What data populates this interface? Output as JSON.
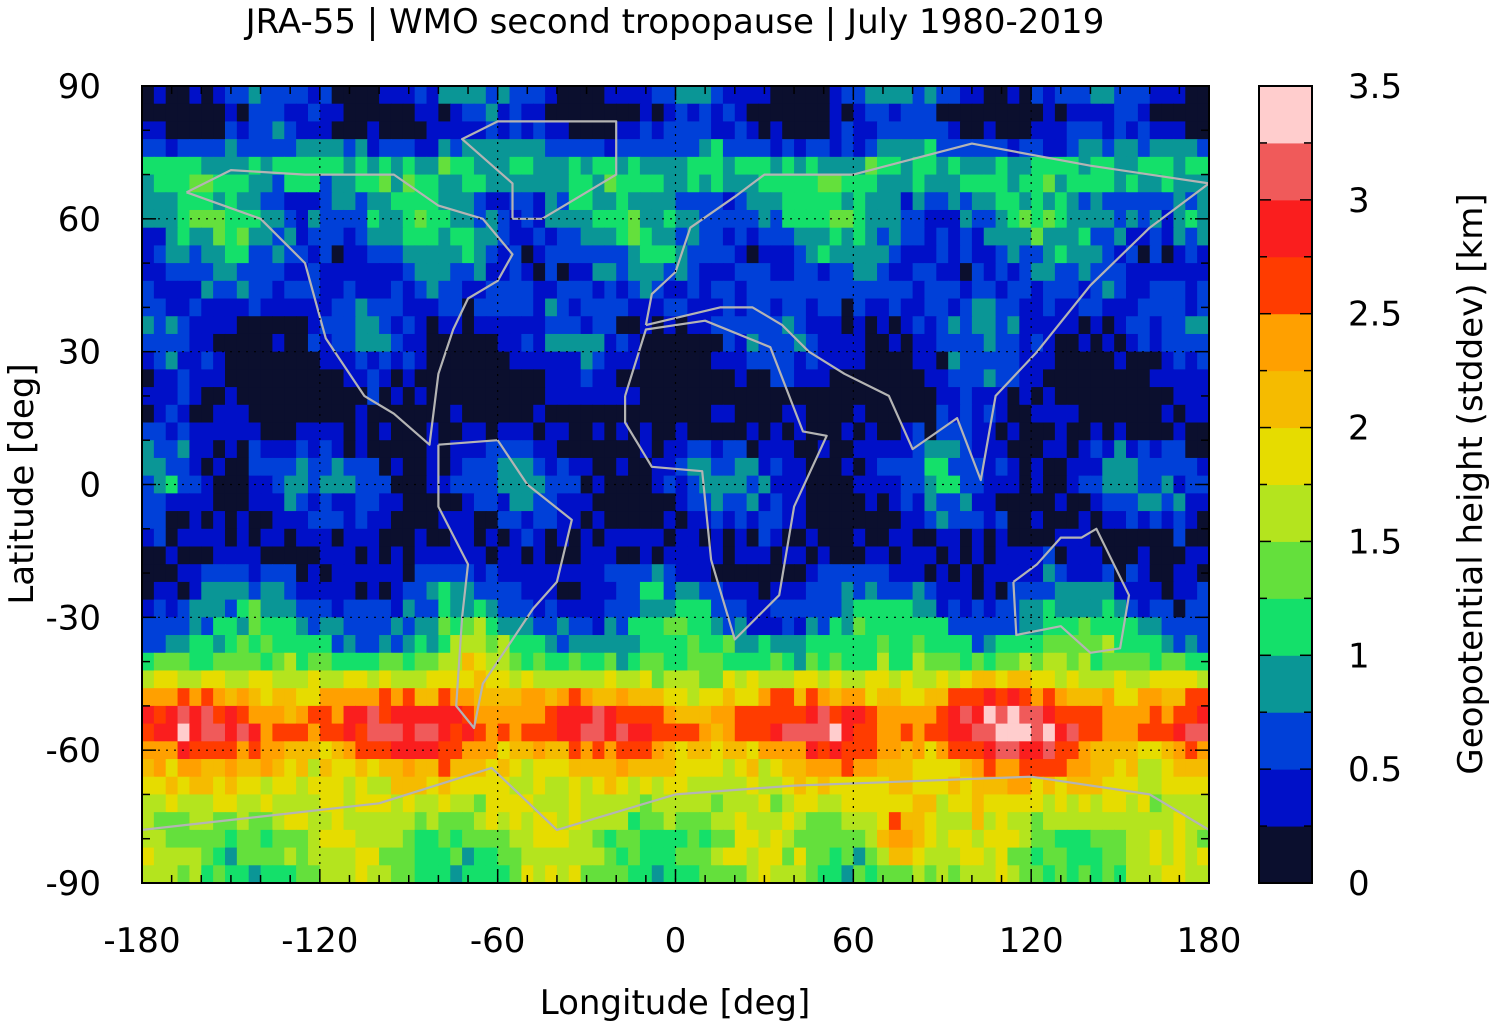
{
  "chart_data": {
    "type": "heatmap",
    "title": "JRA-55 | WMO second tropopause | July 1980-2019",
    "xlabel": "Longitude [deg]",
    "ylabel": "Latitude [deg]",
    "xlim": [
      -180,
      180
    ],
    "ylim": [
      -90,
      90
    ],
    "xticks": [
      -180,
      -120,
      -60,
      0,
      60,
      120,
      180
    ],
    "yticks": [
      90,
      60,
      30,
      0,
      -30,
      -60,
      -90
    ],
    "x_tick_labels": [
      "-180",
      "-120",
      "-60",
      "0",
      "60",
      "120",
      "180"
    ],
    "y_tick_labels": [
      "90",
      "60",
      "30",
      "0",
      "-30",
      "-60",
      "-90"
    ],
    "grid": "dotted at 60 deg longitude and 30 deg latitude",
    "colorbar": {
      "label": "Geopotential height (stddev) [km]",
      "range": [
        0,
        3.5
      ],
      "step": 0.25,
      "tick_values": [
        0,
        0.5,
        1,
        1.5,
        2,
        2.5,
        3,
        3.5
      ],
      "tick_labels": [
        "0",
        "0.5",
        "1",
        "1.5",
        "2",
        "2.5",
        "3",
        "3.5"
      ],
      "colors": [
        "#0b0f2e",
        "#0010c8",
        "#0040d8",
        "#0a9696",
        "#14e06a",
        "#64e03c",
        "#b4e41e",
        "#e6dc00",
        "#f5bb00",
        "#ffa000",
        "#ff3c00",
        "#fa1e1e",
        "#f05a5a",
        "#ffcdcd"
      ]
    },
    "overlay": "coastlines in grey",
    "zonal_profile": {
      "latitude": [
        90,
        85,
        80,
        75,
        70,
        65,
        60,
        55,
        50,
        45,
        40,
        35,
        30,
        25,
        20,
        15,
        10,
        5,
        0,
        -5,
        -10,
        -15,
        -20,
        -25,
        -30,
        -35,
        -40,
        -45,
        -50,
        -55,
        -60,
        -65,
        -70,
        -75,
        -80,
        -85,
        -90
      ],
      "stddev_km": [
        0.6,
        0.2,
        0.35,
        0.8,
        1.2,
        0.8,
        0.9,
        0.75,
        0.6,
        0.55,
        0.5,
        0.45,
        0.4,
        0.15,
        0.1,
        0.15,
        0.25,
        0.45,
        0.5,
        0.35,
        0.3,
        0.2,
        0.4,
        0.6,
        0.8,
        1.0,
        1.3,
        1.85,
        2.5,
        2.9,
        2.4,
        2.05,
        1.75,
        1.6,
        1.5,
        1.45,
        1.4
      ]
    }
  }
}
